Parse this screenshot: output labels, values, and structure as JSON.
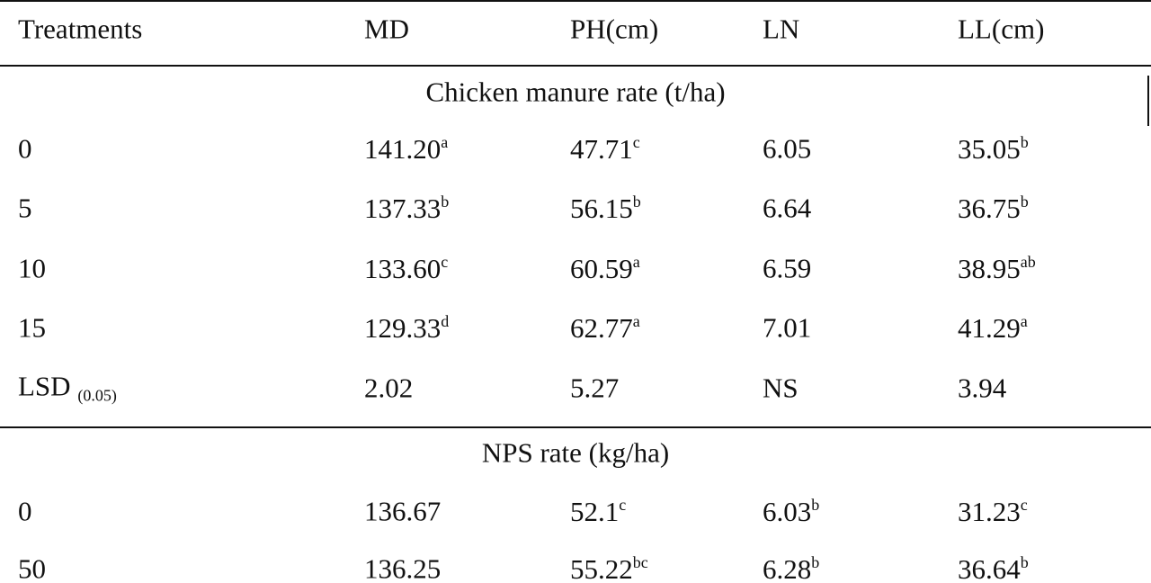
{
  "table": {
    "headers": [
      "Treatments",
      "MD",
      "PH(cm)",
      "LN",
      "LL(cm)"
    ],
    "sections": [
      {
        "title": "Chicken manure rate (t/ha)",
        "rows": [
          [
            "0",
            {
              "text": "141.20",
              "sup": "a"
            },
            {
              "text": "47.71",
              "sup": "c"
            },
            "6.05",
            {
              "text": "35.05",
              "sup": "b"
            }
          ],
          [
            "5",
            {
              "text": "137.33",
              "sup": "b"
            },
            {
              "text": "56.15",
              "sup": "b"
            },
            "6.64",
            {
              "text": "36.75",
              "sup": "b"
            }
          ],
          [
            "10",
            {
              "text": "133.60",
              "sup": "c"
            },
            {
              "text": "60.59",
              "sup": "a"
            },
            "6.59",
            {
              "text": "38.95",
              "sup": "ab"
            }
          ],
          [
            "15",
            {
              "text": "129.33",
              "sup": "d"
            },
            {
              "text": "62.77",
              "sup": "a"
            },
            "7.01",
            {
              "text": "41.29",
              "sup": "a"
            }
          ],
          [
            {
              "text": "LSD",
              "sub": "(0.05)"
            },
            "2.02",
            "5.27",
            "NS",
            "3.94"
          ]
        ]
      },
      {
        "title": "NPS rate (kg/ha)",
        "rows": [
          [
            "0",
            "136.67",
            {
              "text": "52.1",
              "sup": "c"
            },
            {
              "text": "6.03",
              "sup": "b"
            },
            {
              "text": "31.23",
              "sup": "c"
            }
          ],
          [
            "50",
            "136.25",
            {
              "text": "55.22",
              "sup": "bc"
            },
            {
              "text": "6.28",
              "sup": "b"
            },
            {
              "text": "36.64",
              "sup": "b"
            }
          ]
        ]
      }
    ]
  }
}
